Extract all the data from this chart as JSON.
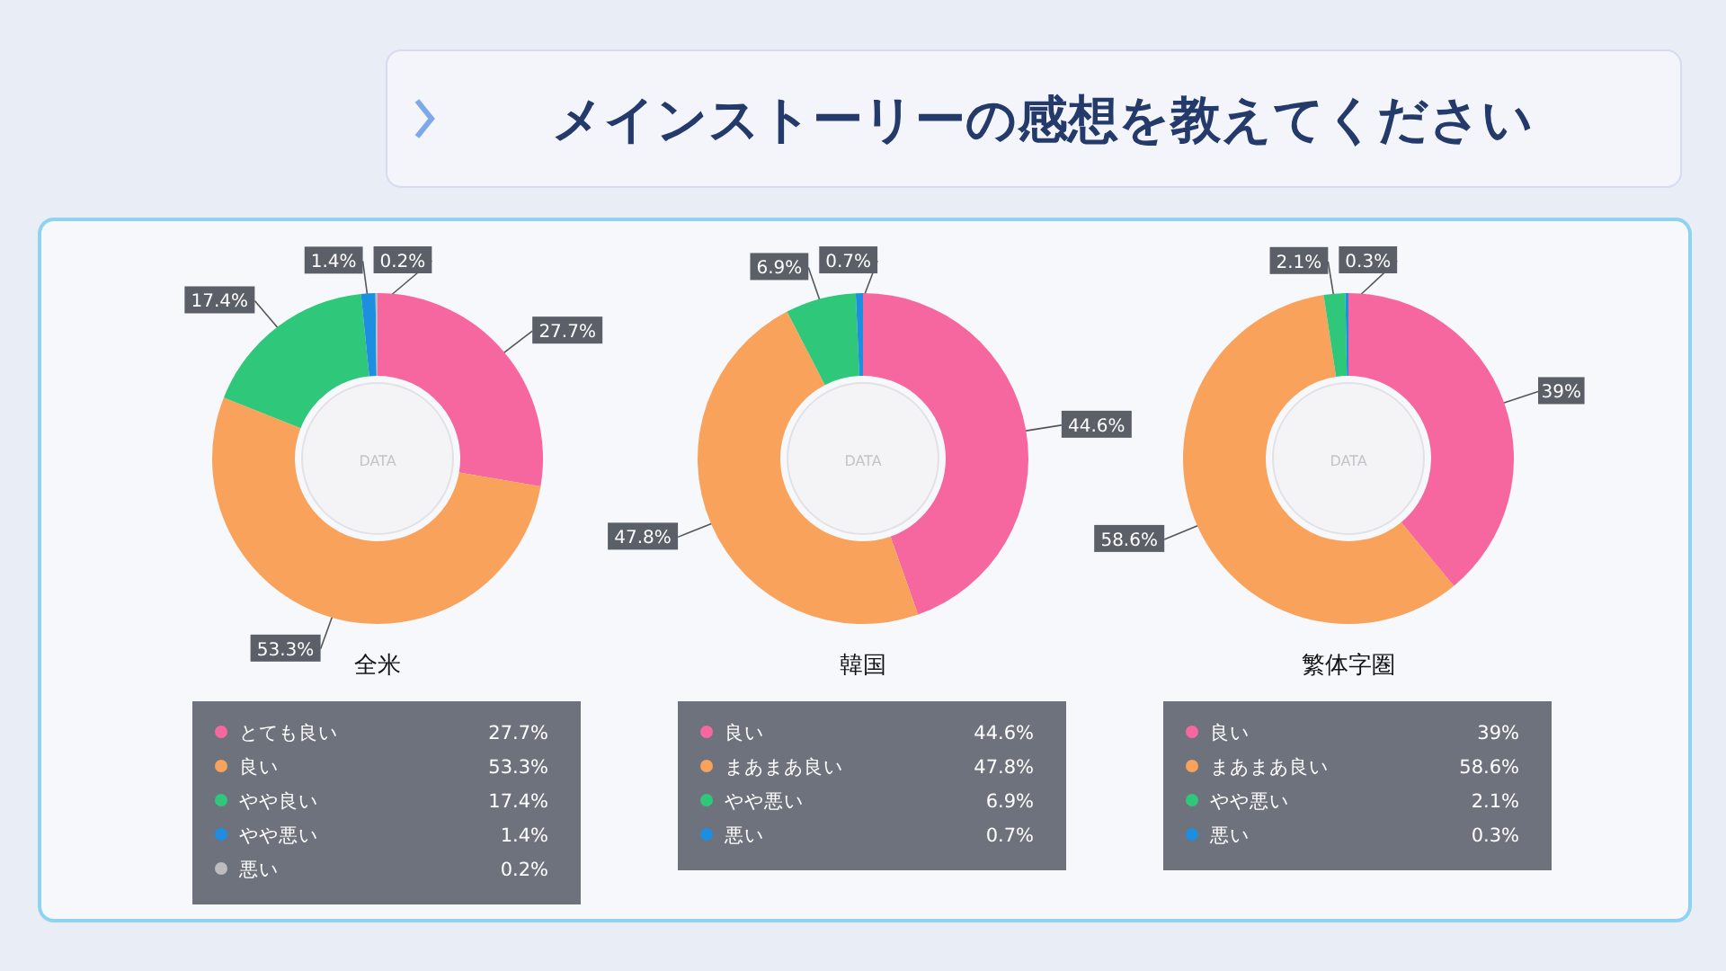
{
  "chart_data": [
    {
      "type": "other",
      "title": "メインストーリーの感想を教えてください"
    },
    {
      "type": "donut",
      "title": "全米",
      "categories": [
        "とても良い",
        "良い",
        "やや良い",
        "やや悪い",
        "悪い"
      ],
      "values": [
        27.7,
        53.3,
        17.4,
        1.4,
        0.2
      ],
      "value_labels": [
        "27.7%",
        "53.3%",
        "17.4%",
        "1.4%",
        "0.2%"
      ],
      "colors": [
        "#f7679f",
        "#f9a25c",
        "#2fc77a",
        "#1e8fe0",
        "#bdbdbd"
      ],
      "legend": "bottom",
      "annotations": [
        "DATA"
      ]
    },
    {
      "type": "donut",
      "title": "韓国",
      "categories": [
        "良い",
        "まあまあ良い",
        "やや悪い",
        "悪い"
      ],
      "values": [
        44.6,
        47.8,
        6.9,
        0.7
      ],
      "value_labels": [
        "44.6%",
        "47.8%",
        "6.9%",
        "0.7%"
      ],
      "colors": [
        "#f7679f",
        "#f9a25c",
        "#2fc77a",
        "#1e8fe0"
      ],
      "legend": "bottom",
      "annotations": [
        "DATA"
      ]
    },
    {
      "type": "donut",
      "title": "繁体字圏",
      "categories": [
        "良い",
        "まあまあ良い",
        "やや悪い",
        "悪い"
      ],
      "values": [
        39,
        58.6,
        2.1,
        0.3
      ],
      "value_labels": [
        "39%",
        "58.6%",
        "2.1%",
        "0.3%"
      ],
      "colors": [
        "#f7679f",
        "#f9a25c",
        "#2fc77a",
        "#1e8fe0"
      ],
      "legend": "bottom",
      "annotations": [
        "DATA"
      ]
    }
  ]
}
